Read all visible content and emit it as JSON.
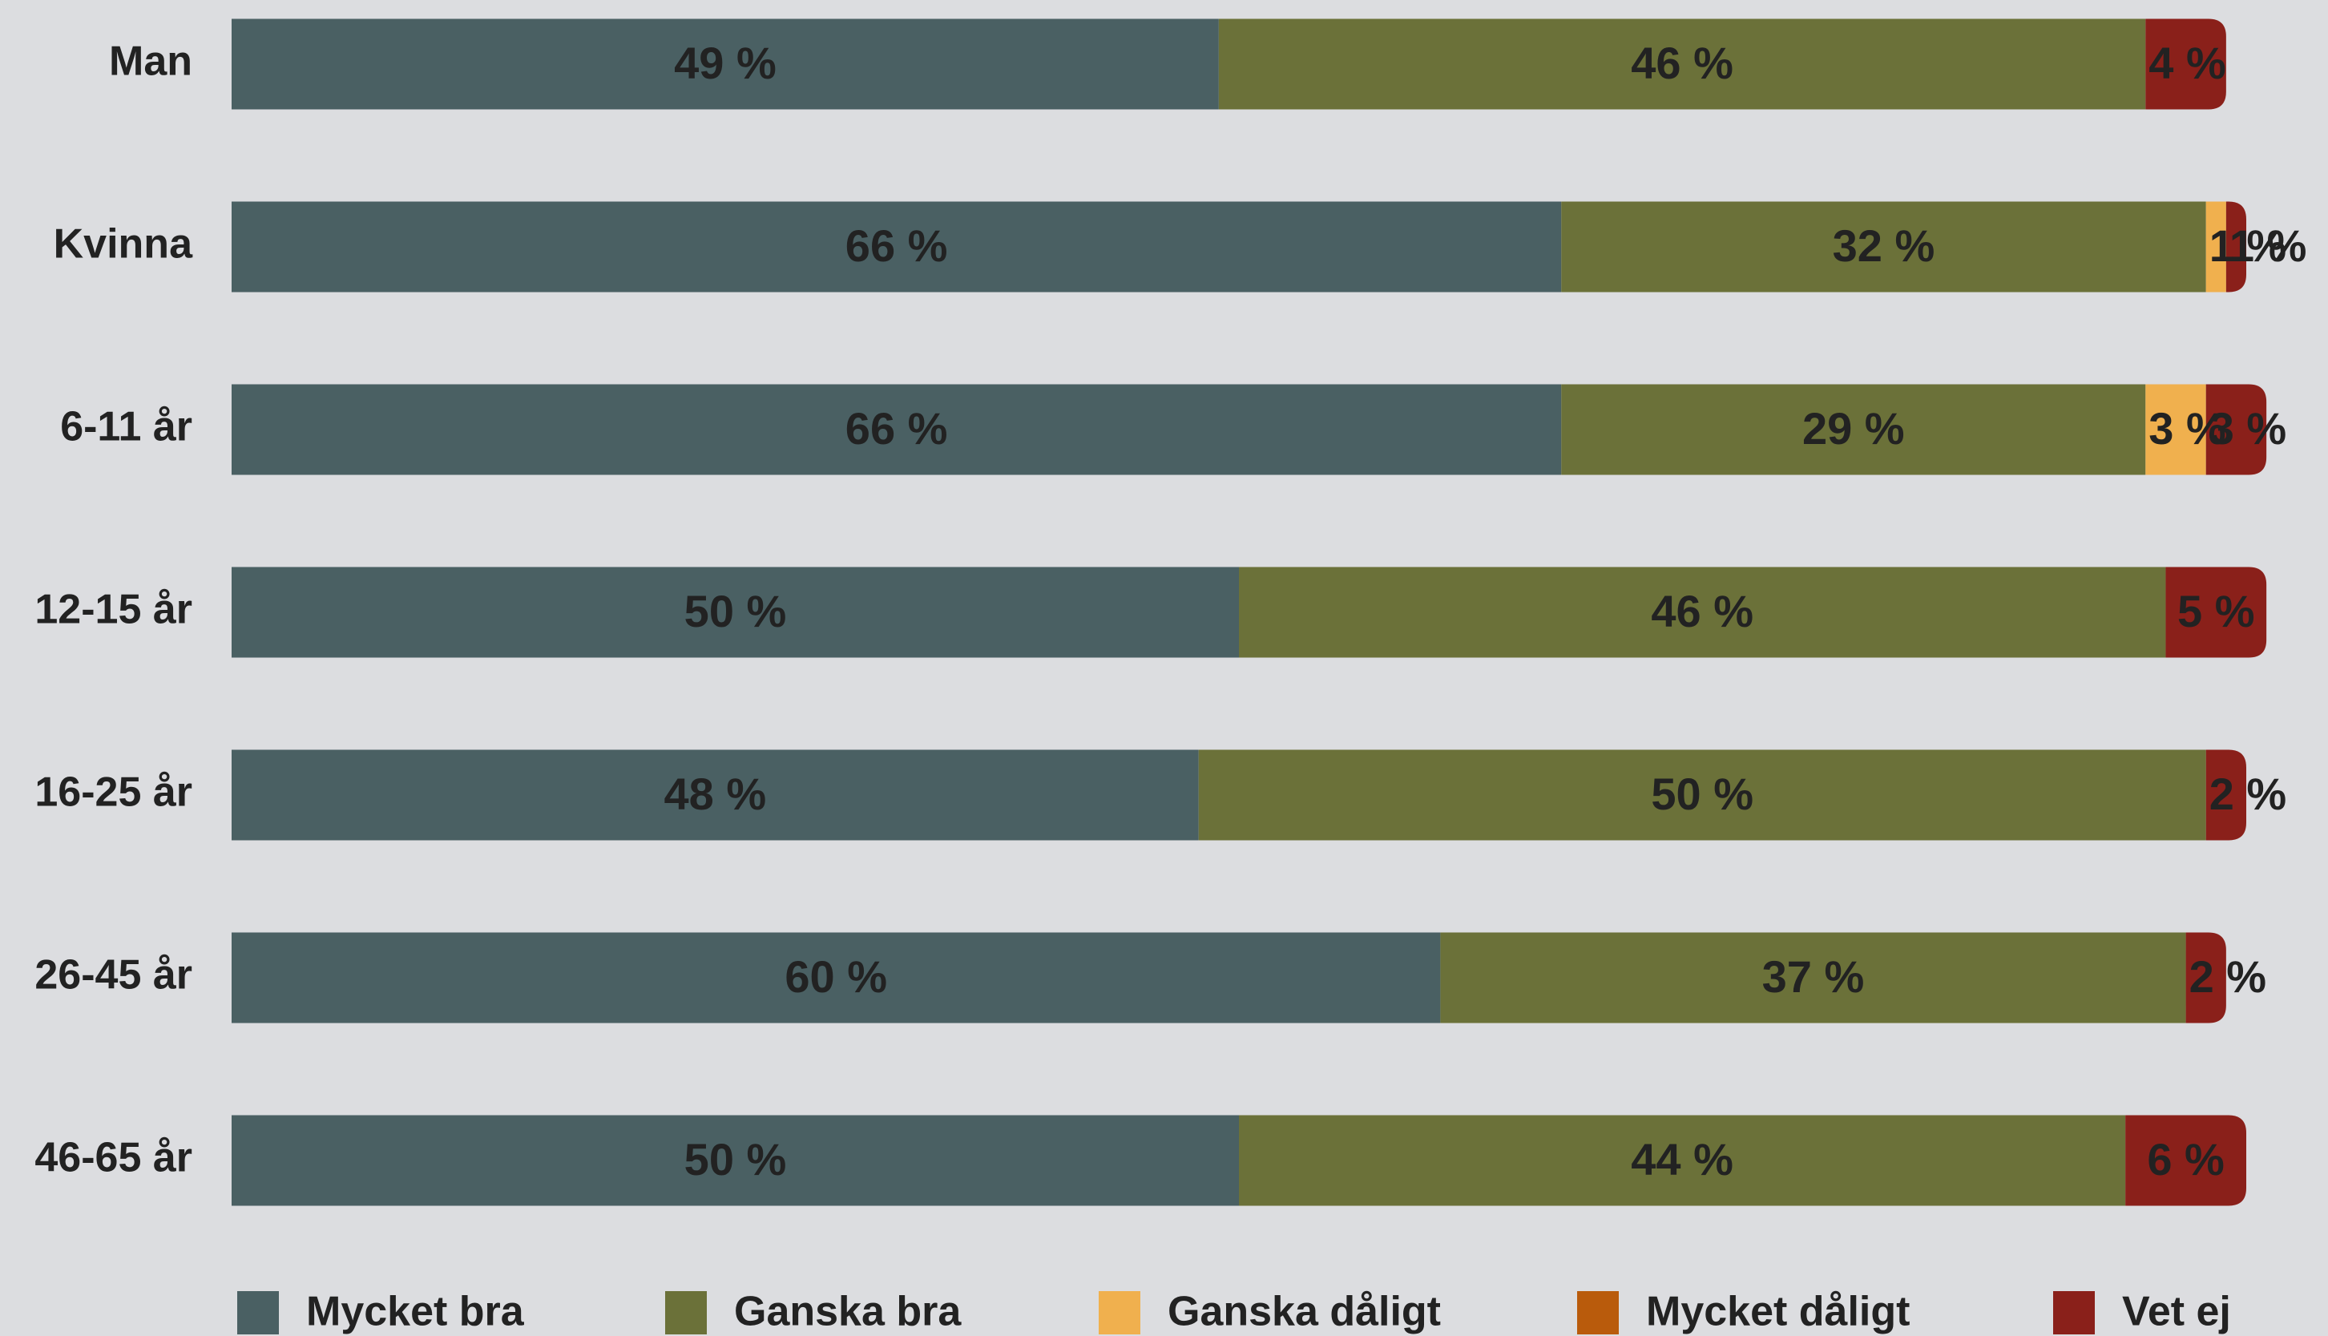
{
  "chart_data": {
    "type": "stacked-bar-horizontal",
    "categories": [
      "Man",
      "Kvinna",
      "6-11 år",
      "12-15 år",
      "16-25 år",
      "26-45 år",
      "46-65 år"
    ],
    "xlim": [
      0,
      100
    ],
    "legend": "bottom",
    "series": [
      {
        "name": "Mycket bra",
        "color": "#4a6063",
        "values": [
          49,
          66,
          66,
          50,
          48,
          60,
          50
        ],
        "value_labels": [
          "49 %",
          "66 %",
          "66 %",
          "50 %",
          "48 %",
          "60 %",
          "50 %"
        ]
      },
      {
        "name": "Ganska bra",
        "color": "#6b7139",
        "values": [
          46,
          32,
          29,
          46,
          50,
          37,
          44
        ],
        "value_labels": [
          "46 %",
          "32 %",
          "29 %",
          "46 %",
          "50 %",
          "37 %",
          "44 %"
        ]
      },
      {
        "name": "Ganska dåligt",
        "color": "#f0b04e",
        "values": [
          null,
          1,
          3,
          null,
          null,
          null,
          null
        ],
        "value_labels": [
          null,
          "1 %",
          "3 %",
          null,
          null,
          null,
          null
        ]
      },
      {
        "name": "Mycket dåligt",
        "color": "#b95b0c",
        "values": [
          null,
          null,
          null,
          null,
          null,
          null,
          null
        ],
        "value_labels": [
          null,
          null,
          null,
          null,
          null,
          null,
          null
        ]
      },
      {
        "name": "Vet ej",
        "color": "#8a201a",
        "values": [
          4,
          1,
          3,
          5,
          2,
          2,
          6
        ],
        "value_labels": [
          "4 %",
          "1 %",
          "3 %",
          "5 %",
          "2 %",
          "2 %",
          "6 %"
        ]
      }
    ]
  }
}
